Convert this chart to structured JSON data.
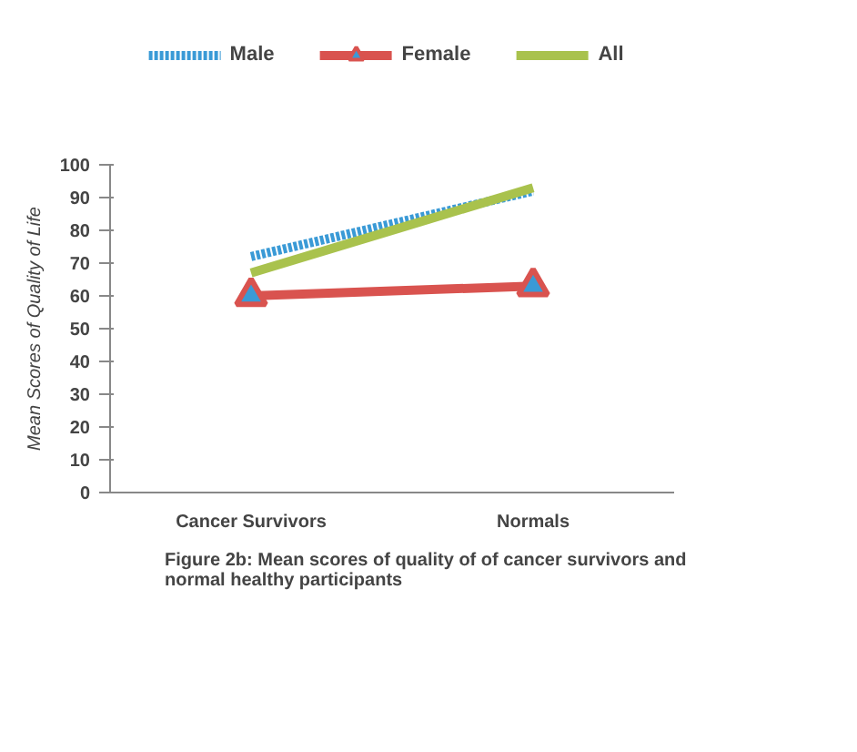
{
  "chart_data": {
    "type": "line",
    "categories": [
      "Cancer Survivors",
      "Normals"
    ],
    "series": [
      {
        "name": "Male",
        "color": "#3a9ad6",
        "values": [
          72,
          92
        ],
        "line_style": "dotted",
        "marker": "none"
      },
      {
        "name": "Female",
        "color": "#d9534f",
        "values": [
          60,
          63
        ],
        "line_style": "solid",
        "marker": "triangle"
      },
      {
        "name": "All",
        "color": "#a9c24d",
        "values": [
          67,
          93
        ],
        "line_style": "solid",
        "marker": "none"
      }
    ],
    "ylim": [
      0,
      100
    ],
    "yticks": [
      0,
      10,
      20,
      30,
      40,
      50,
      60,
      70,
      80,
      90,
      100
    ],
    "ylabel": "Mean Scores of Quality of Life",
    "legend": "top",
    "grid": false,
    "annotations": [
      "Figure 2b: Mean scores of quality of of cancer survivors and normal healthy participants"
    ]
  }
}
